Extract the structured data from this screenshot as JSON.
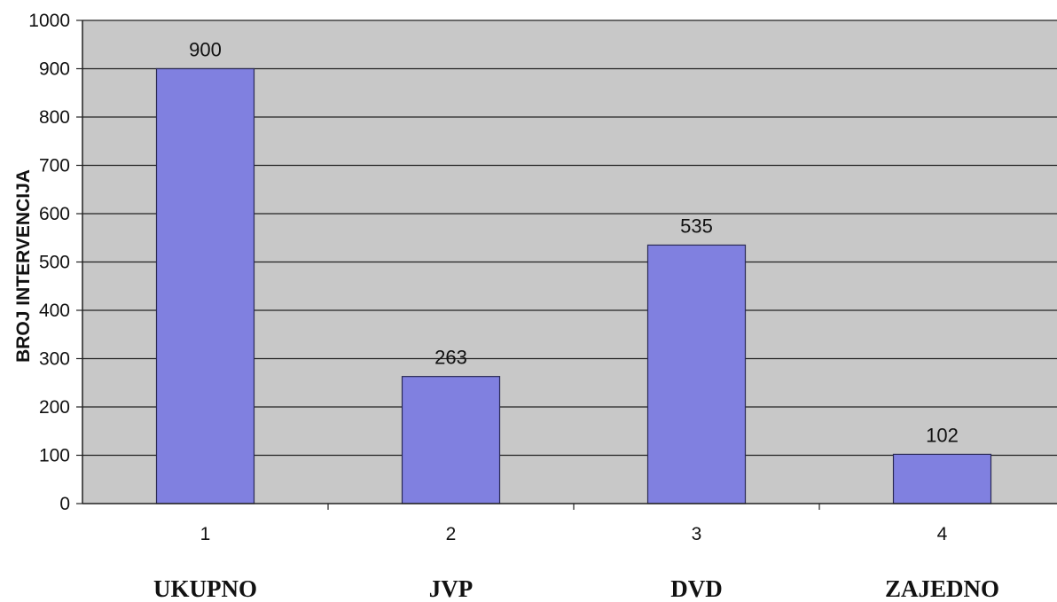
{
  "chart_data": {
    "type": "bar",
    "categories": [
      "1",
      "2",
      "3",
      "4"
    ],
    "category_names": [
      "UKUPNO",
      "JVP",
      "DVD",
      "ZAJEDNO"
    ],
    "values": [
      900,
      263,
      535,
      102
    ],
    "data_labels": [
      "900",
      "263",
      "535",
      "102"
    ],
    "ylabel": "BROJ INTERVENCIJA",
    "xlabel": "",
    "ylim": [
      0,
      1000
    ],
    "yticks": [
      "0",
      "100",
      "200",
      "300",
      "400",
      "500",
      "600",
      "700",
      "800",
      "900",
      "1000"
    ],
    "grid": true,
    "legend": "none",
    "colors": {
      "bar": "#8080e0",
      "bar_edge": "#2a2a55",
      "plot_bg": "#c8c8c8",
      "gridline": "#222222"
    }
  }
}
